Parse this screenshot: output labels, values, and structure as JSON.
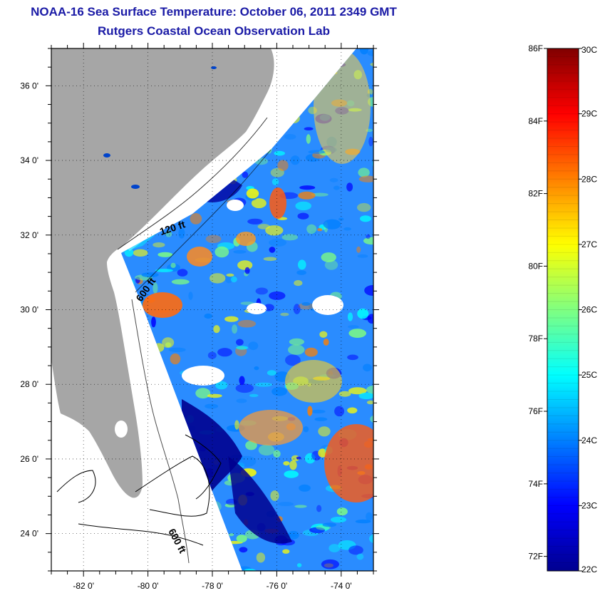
{
  "header": {
    "title": "NOAA-16 Sea Surface Temperature:  October 06, 2011 2349 GMT",
    "subtitle": "Rutgers Coastal Ocean Observation Lab"
  },
  "map": {
    "lon_range": [
      -83,
      -73
    ],
    "lat_range": [
      23,
      37
    ],
    "x_ticks": [
      {
        "lon": -82,
        "label": "-82 0'"
      },
      {
        "lon": -80,
        "label": "-80 0'"
      },
      {
        "lon": -78,
        "label": "-78 0'"
      },
      {
        "lon": -76,
        "label": "-76 0'"
      },
      {
        "lon": -74,
        "label": "-74 0'"
      }
    ],
    "y_ticks": [
      {
        "lat": 36,
        "label": "36 0'"
      },
      {
        "lat": 34,
        "label": "34 0'"
      },
      {
        "lat": 32,
        "label": "32 0'"
      },
      {
        "lat": 30,
        "label": "30 0'"
      },
      {
        "lat": 28,
        "label": "28 0'"
      },
      {
        "lat": 26,
        "label": "26 0'"
      },
      {
        "lat": 24,
        "label": "24 0'"
      }
    ],
    "isobaths": [
      "120 ft",
      "600 ft",
      "600 ft"
    ],
    "land_color": "#a6a6a6",
    "nodata_color": "#ffffff",
    "grid": "dotted"
  },
  "colorbar": {
    "celsius": [
      {
        "value": 30,
        "label": "30C"
      },
      {
        "value": 29,
        "label": "29C"
      },
      {
        "value": 28,
        "label": "28C"
      },
      {
        "value": 27,
        "label": "27C"
      },
      {
        "value": 26,
        "label": "26C"
      },
      {
        "value": 25,
        "label": "25C"
      },
      {
        "value": 24,
        "label": "24C"
      },
      {
        "value": 23,
        "label": "23C"
      },
      {
        "value": 22,
        "label": "22C"
      }
    ],
    "fahrenheit": [
      {
        "value": 86,
        "label": "86F"
      },
      {
        "value": 84,
        "label": "84F"
      },
      {
        "value": 82,
        "label": "82F"
      },
      {
        "value": 80,
        "label": "80F"
      },
      {
        "value": 78,
        "label": "78F"
      },
      {
        "value": 76,
        "label": "76F"
      },
      {
        "value": 74,
        "label": "74F"
      },
      {
        "value": 72,
        "label": "72F"
      }
    ],
    "colormap": [
      "#00008f",
      "#0000ff",
      "#0080ff",
      "#00ffff",
      "#80ff80",
      "#ffff00",
      "#ff8000",
      "#ff0000",
      "#800000"
    ]
  }
}
